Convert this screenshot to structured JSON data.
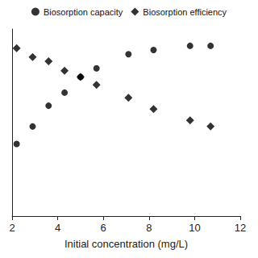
{
  "chart_data": {
    "type": "scatter",
    "x_label": "Initial concentration (mg/L)",
    "x": [
      2.2,
      2.9,
      3.6,
      4.3,
      5.0,
      5.7,
      7.1,
      8.2,
      9.8,
      10.7
    ],
    "series": [
      {
        "name": "Biosorption capacity",
        "color": "#000000",
        "marker": "circle",
        "values": [
          38.6,
          47.9,
          59.0,
          66.0,
          74.4,
          79.0,
          86.5,
          88.8,
          91.0,
          91.0
        ]
      },
      {
        "name": "Biosorption efficiency",
        "color": "#000000",
        "marker": "diamond",
        "values": [
          89.8,
          85.0,
          82.8,
          77.7,
          74.4,
          70.2,
          63.3,
          57.2,
          51.2,
          47.9
        ]
      }
    ],
    "xlim": [
      2,
      12
    ],
    "xticks": [
      2,
      4,
      6,
      8,
      10,
      12
    ],
    "ylim": [
      0,
      100
    ],
    "tick_labels": "x",
    "grid": false,
    "legend": "top"
  }
}
